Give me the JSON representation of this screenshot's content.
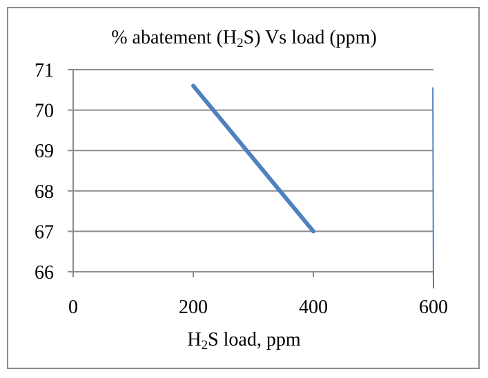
{
  "chart_data": {
    "type": "line",
    "title": {
      "prefix": "% abatement (H",
      "sub": "2",
      "suffix": "S) Vs load (ppm)"
    },
    "xlabel": {
      "prefix": "H",
      "sub": "2",
      "suffix": "S load, ppm"
    },
    "ylabel": "",
    "xlim": [
      0,
      600
    ],
    "ylim": [
      66,
      71
    ],
    "xticks": [
      0,
      200,
      400,
      600
    ],
    "yticks": [
      66,
      67,
      68,
      69,
      70,
      71
    ],
    "grid": "horizontal",
    "series": [
      {
        "points": [
          {
            "x": 200,
            "y": 70.6
          },
          {
            "x": 400,
            "y": 67
          }
        ],
        "color": "#4f81bd",
        "width": "thick"
      },
      {
        "points": [
          {
            "x": 599,
            "y": 70.55
          },
          {
            "x": 600,
            "y": 65.6
          }
        ],
        "color": "#4f81bd",
        "width": "thin"
      }
    ]
  }
}
